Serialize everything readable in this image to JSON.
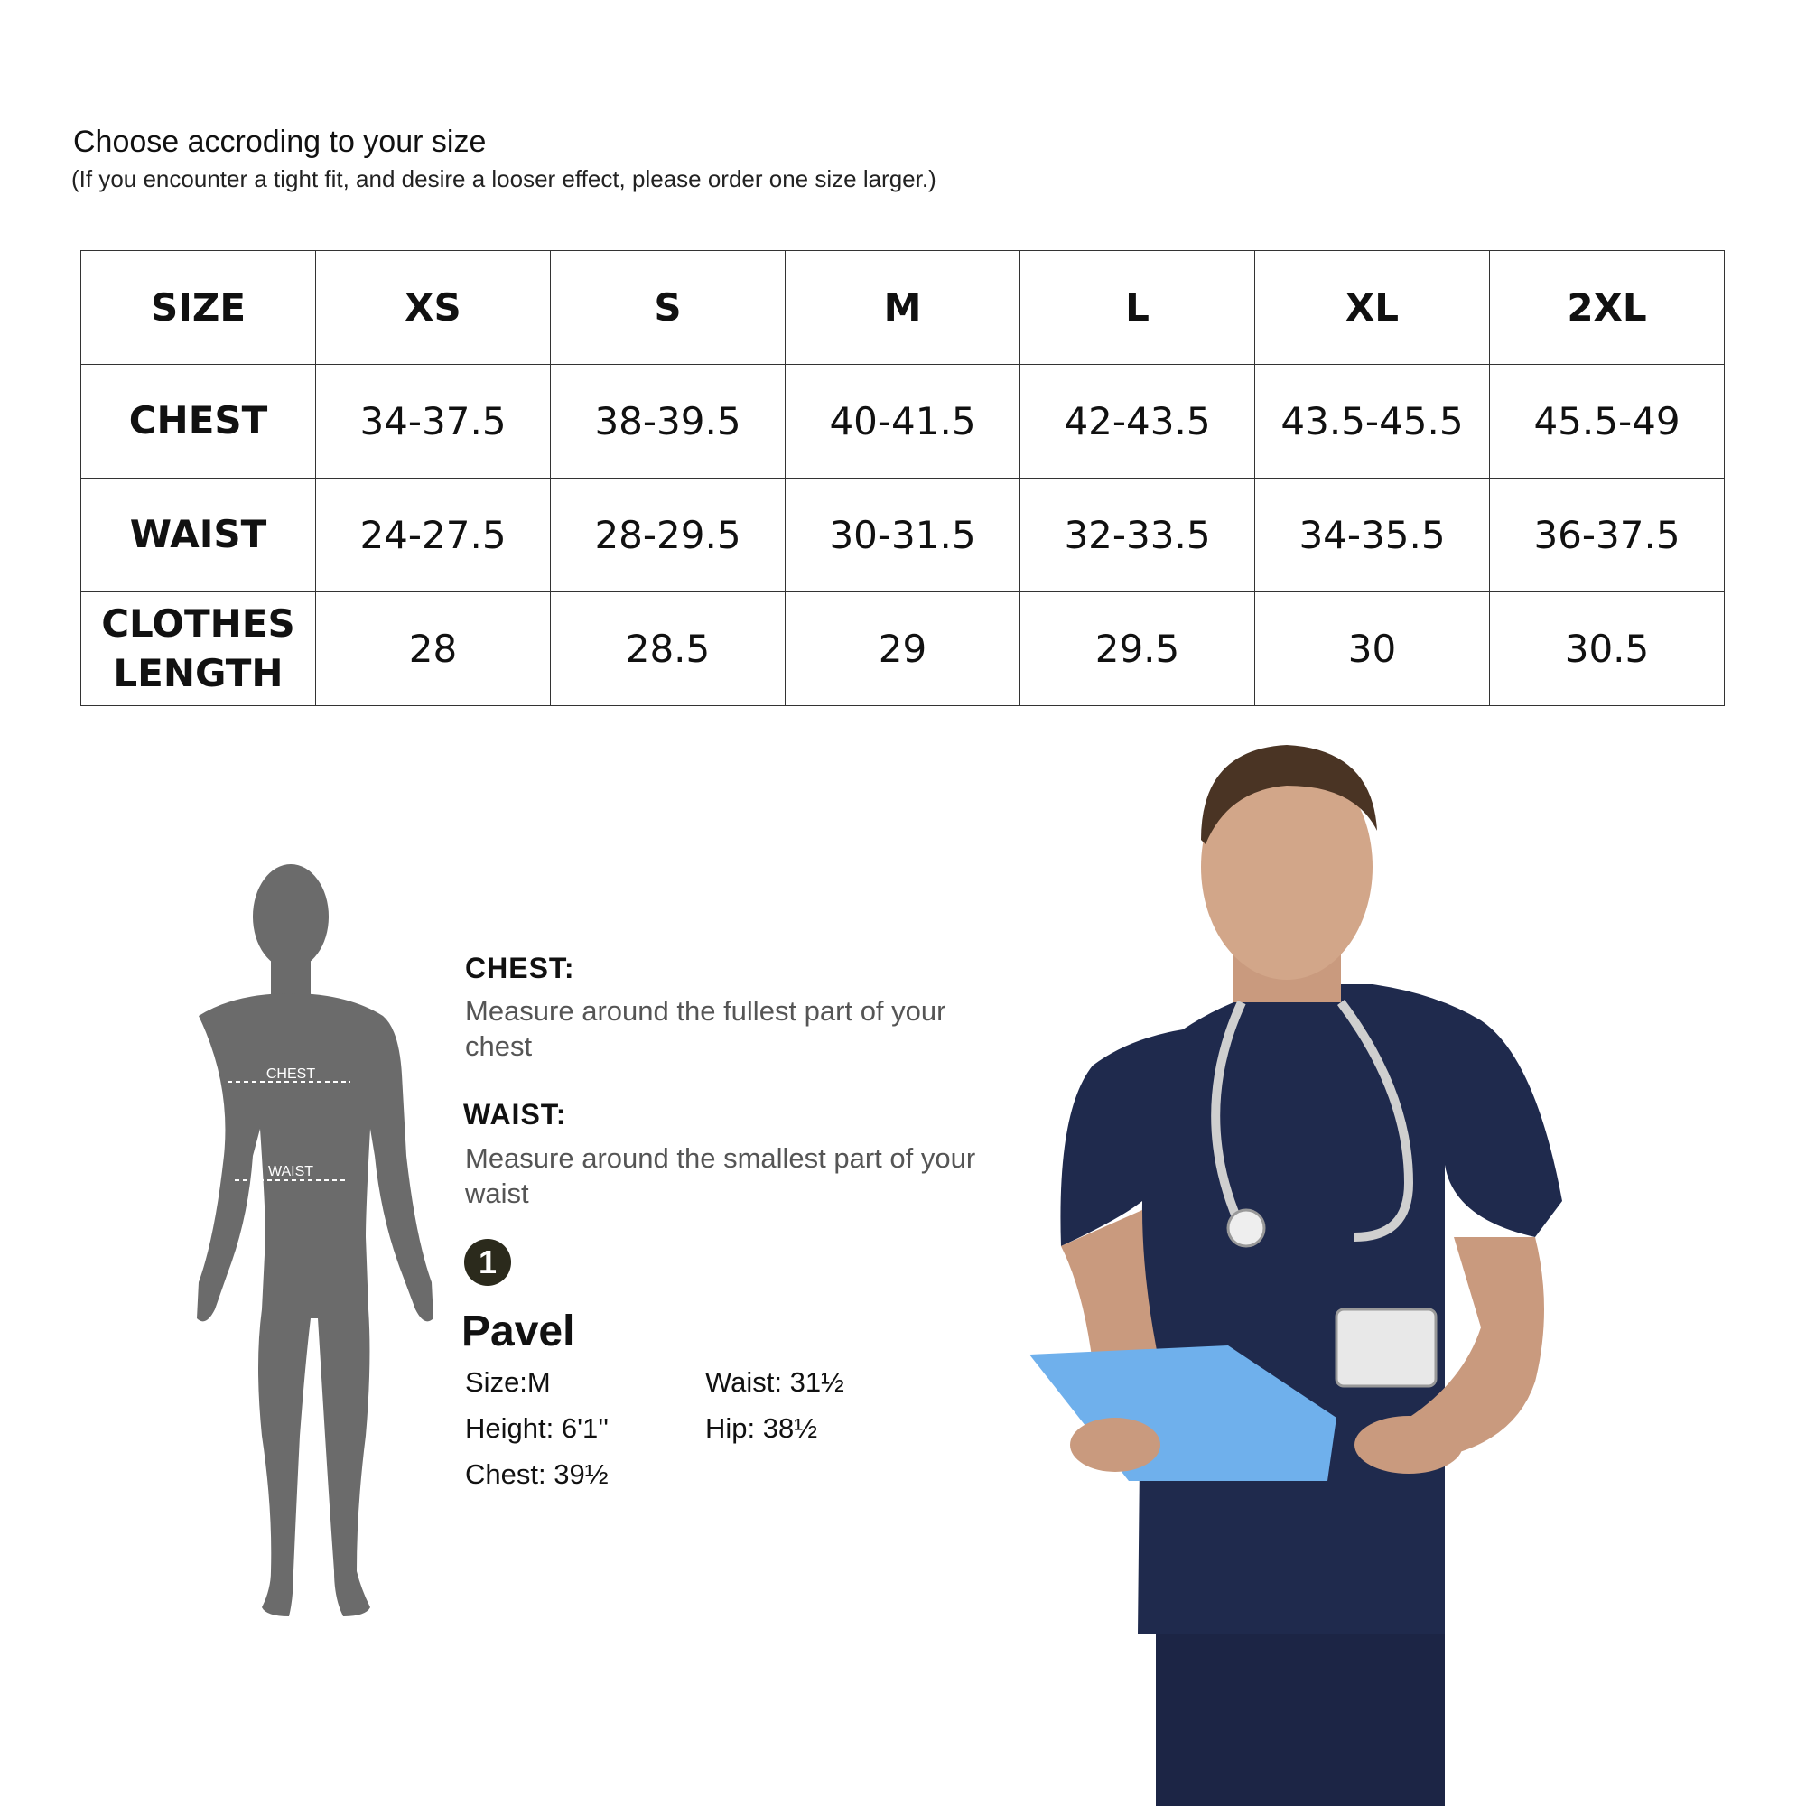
{
  "header": {
    "title": "Choose accroding to your size",
    "subtitle": "(If you encounter a tight fit, and desire a looser effect, please order one size larger.)"
  },
  "size_table": {
    "columns": [
      "SIZE",
      "XS",
      "S",
      "M",
      "L",
      "XL",
      "2XL"
    ],
    "rows": [
      {
        "label": "CHEST",
        "values": [
          "34-37.5",
          "38-39.5",
          "40-41.5",
          "42-43.5",
          "43.5-45.5",
          "45.5-49"
        ]
      },
      {
        "label": "WAIST",
        "values": [
          "24-27.5",
          "28-29.5",
          "30-31.5",
          "32-33.5",
          "34-35.5",
          "36-37.5"
        ]
      },
      {
        "label": "CLOTHES LENGTH",
        "values": [
          "28",
          "28.5",
          "29",
          "29.5",
          "30",
          "30.5"
        ]
      }
    ]
  },
  "body_figure": {
    "chest_label": "CHEST",
    "waist_label": "WAIST",
    "color": "#6b6b6b"
  },
  "measure_guide": {
    "chest_title": "CHEST:",
    "chest_desc": "Measure around the fullest part of your chest",
    "waist_title": "WAIST:",
    "waist_desc": "Measure around the smallest part of your waist"
  },
  "model": {
    "badge": "1",
    "name": "Pavel",
    "size": "Size:M",
    "height": "Height: 6'1''",
    "chest": "Chest: 39½",
    "waist": "Waist: 31½",
    "hip": "Hip: 38½",
    "scrub_color": "#1f2a4d"
  }
}
